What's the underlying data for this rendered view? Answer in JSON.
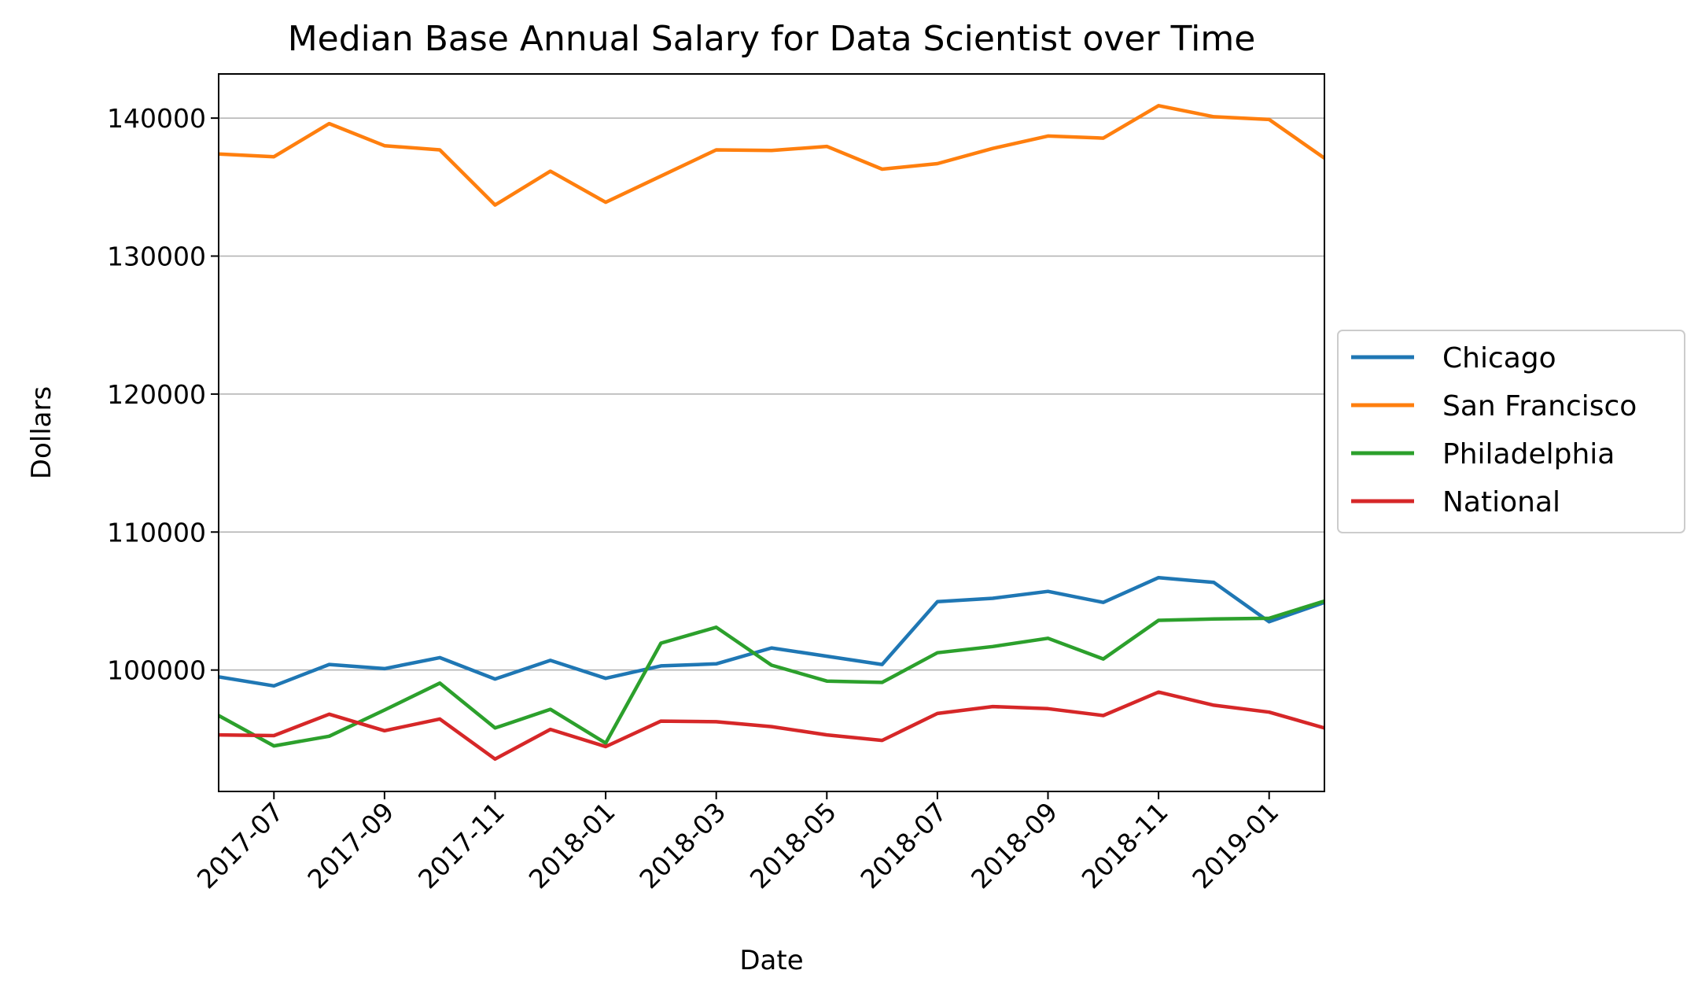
{
  "chart_data": {
    "type": "line",
    "title": "Median Base Annual Salary for Data Scientist over Time",
    "xlabel": "Date",
    "ylabel": "Dollars",
    "x": [
      "2017-06",
      "2017-07",
      "2017-08",
      "2017-09",
      "2017-10",
      "2017-11",
      "2017-12",
      "2018-01",
      "2018-02",
      "2018-03",
      "2018-04",
      "2018-05",
      "2018-06",
      "2018-07",
      "2018-08",
      "2018-09",
      "2018-10",
      "2018-11",
      "2018-12",
      "2019-01",
      "2019-02"
    ],
    "xlim": [
      "2017-06",
      "2019-02"
    ],
    "x_ticks": [
      "2017-07",
      "2017-09",
      "2017-11",
      "2018-01",
      "2018-03",
      "2018-05",
      "2018-07",
      "2018-09",
      "2018-11",
      "2019-01"
    ],
    "ylim": [
      91200,
      143200
    ],
    "y_ticks": [
      100000,
      110000,
      120000,
      130000,
      140000
    ],
    "y_grid": true,
    "legend_position": "right-outside",
    "series": [
      {
        "name": "Chicago",
        "color": "#1f77b4",
        "values": [
          99500,
          98850,
          100400,
          100100,
          100900,
          99350,
          100700,
          99400,
          100300,
          100450,
          101600,
          101000,
          100400,
          104950,
          105200,
          105700,
          104900,
          106700,
          106350,
          103500,
          104900
        ]
      },
      {
        "name": "San Francisco",
        "color": "#ff7f0e",
        "values": [
          137400,
          137200,
          139600,
          138000,
          137700,
          133700,
          136150,
          133900,
          135800,
          137700,
          137650,
          137950,
          136300,
          136700,
          137800,
          138700,
          138550,
          140900,
          140100,
          139900,
          137100
        ]
      },
      {
        "name": "Philadelphia",
        "color": "#2ca02c",
        "values": [
          96700,
          94500,
          95200,
          97100,
          99050,
          95800,
          97150,
          94700,
          101950,
          103100,
          100350,
          99200,
          99100,
          101250,
          101700,
          102300,
          100800,
          103600,
          103700,
          103750,
          105000
        ]
      },
      {
        "name": "National",
        "color": "#d62728",
        "values": [
          95300,
          95250,
          96800,
          95600,
          96450,
          93550,
          95700,
          94450,
          96300,
          96250,
          95900,
          95300,
          94900,
          96850,
          97350,
          97200,
          96700,
          98400,
          97450,
          96950,
          95800
        ]
      }
    ]
  }
}
